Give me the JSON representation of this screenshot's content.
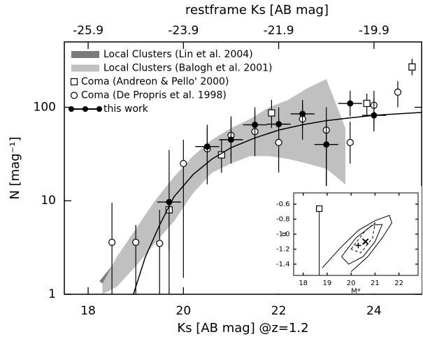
{
  "chart_data": [
    {
      "type": "scatter",
      "xlabel": "Ks [AB mag] @z=1.2",
      "ylabel": "N [mag⁻¹]",
      "x2label": "restframe Ks [AB mag]",
      "xlim": [
        17.5,
        25
      ],
      "xticks": [
        18,
        20,
        22,
        24
      ],
      "x2lim": [
        -26.4,
        -18.9
      ],
      "x2ticks": [
        -25.9,
        -23.9,
        -21.9,
        -19.9
      ],
      "ylim": [
        1,
        500
      ],
      "yticks": [
        1,
        10,
        100
      ],
      "log_y": true,
      "legend": "upper left",
      "series": [
        {
          "name": "Local Clusters (Lin et al. 2004)",
          "style": "band",
          "color": "#7a7a7a",
          "x": [
            18.3,
            18.6,
            19.0,
            19.4,
            19.8,
            20.2,
            20.6,
            21.0,
            21.4,
            21.8,
            22.2,
            22.6,
            23.0
          ],
          "values": [
            1.3,
            2.0,
            3.5,
            6,
            11,
            18,
            28,
            38,
            48,
            55,
            55,
            50,
            42
          ]
        },
        {
          "name": "Local Clusters (Balogh et al. 2001)",
          "style": "area",
          "color": "#c0c0c0",
          "x": [
            18.3,
            18.6,
            19.0,
            19.4,
            19.8,
            20.2,
            20.6,
            21.0,
            21.4,
            21.8,
            22.2,
            22.6,
            23.0,
            23.4
          ],
          "low": [
            1,
            1.2,
            2,
            3.5,
            6,
            12,
            20,
            25,
            30,
            30,
            28,
            25,
            22,
            15
          ],
          "high": [
            1.3,
            2.5,
            5,
            10,
            18,
            30,
            45,
            60,
            75,
            100,
            120,
            160,
            200,
            60
          ]
        },
        {
          "name": "Coma (Andreon & Pello' 2000)",
          "marker": "square",
          "color": "#000000",
          "x": [
            19.7,
            20.8,
            21.85,
            23.85,
            24.8
          ],
          "values": [
            8,
            31,
            87,
            110,
            270
          ],
          "err_low": [
            1,
            20,
            60,
            80,
            220
          ],
          "err_high": [
            10,
            45,
            120,
            140,
            330
          ]
        },
        {
          "name": "Coma (De Propris et al. 1998)",
          "marker": "circle",
          "color": "#000000",
          "x": [
            18.5,
            19.0,
            19.5,
            20.0,
            20.5,
            21.0,
            21.5,
            22.0,
            22.5,
            23.0,
            23.5,
            24.0,
            24.5
          ],
          "values": [
            3.6,
            3.6,
            3.5,
            25,
            36,
            50,
            55,
            42,
            75,
            57,
            42,
            105,
            145
          ],
          "err_low": [
            1,
            1,
            1,
            1.5,
            15,
            25,
            30,
            20,
            45,
            2,
            25,
            60,
            100
          ],
          "err_high": [
            9.5,
            5.5,
            8,
            45,
            60,
            80,
            90,
            75,
            110,
            100,
            70,
            150,
            190
          ]
        },
        {
          "name": "this work",
          "marker": "dot",
          "color": "#000000",
          "x": [
            19.7,
            20.5,
            21.0,
            21.5,
            22.0,
            22.5,
            23.0,
            23.5,
            24.0
          ],
          "values": [
            9.7,
            38,
            45,
            65,
            66,
            85,
            40,
            110,
            82
          ],
          "xerr": [
            0.25,
            0.25,
            0.25,
            0.25,
            0.25,
            0.25,
            0.25,
            0.25,
            0.25
          ],
          "err_low": [
            3,
            22,
            28,
            45,
            45,
            60,
            8,
            80,
            55
          ],
          "err_high": [
            35,
            65,
            75,
            100,
            100,
            120,
            75,
            150,
            125
          ],
          "fit_x": [
            18.95,
            19.2,
            19.5,
            19.8,
            20.2,
            20.6,
            21.0,
            21.5,
            22.0,
            22.5,
            23.0,
            23.5,
            24.0,
            24.5,
            25.0
          ],
          "fit_values": [
            1,
            2.5,
            5.5,
            11,
            19,
            28,
            37,
            47,
            57,
            65,
            72,
            77,
            82,
            85,
            88
          ]
        }
      ]
    },
    {
      "type": "scatter",
      "xlabel": "M*",
      "ylabel": "α",
      "xlim": [
        17.6,
        22.8
      ],
      "xticks": [
        18,
        19,
        20,
        21,
        22
      ],
      "ylim": [
        -1.55,
        -0.45
      ],
      "yticks": [
        -0.6,
        -0.8,
        {
          "value": -1,
          "label": "-1.0"
        },
        -1.2,
        -1.4
      ],
      "contours": [
        {
          "style": "solid",
          "x": [
            18.8,
            19.5,
            20.3,
            21.0,
            21.6,
            21.7,
            21.3,
            20.7,
            20.0
          ],
          "values": [
            -1.45,
            -1.2,
            -0.95,
            -0.82,
            -0.75,
            -0.85,
            -1.05,
            -1.3,
            -1.5
          ]
        },
        {
          "style": "solid",
          "x": [
            19.6,
            20.2,
            20.9,
            21.3,
            21.0,
            20.5,
            19.9,
            19.6
          ],
          "values": [
            -1.3,
            -1.05,
            -0.88,
            -0.87,
            -1.1,
            -1.3,
            -1.4,
            -1.3
          ]
        },
        {
          "style": "dashed",
          "x": [
            20.0,
            20.6,
            21.0,
            20.9,
            20.4,
            20.0
          ],
          "values": [
            -1.2,
            -0.95,
            -0.85,
            -1.05,
            -1.25,
            -1.2
          ]
        }
      ],
      "points": [
        {
          "marker": "square",
          "x": 18.67,
          "value": -0.66,
          "err_low": -1.55
        },
        {
          "marker": "cross",
          "x": 20.6,
          "value": -1.1
        },
        {
          "marker": "plus",
          "x": 20.3,
          "value": -1.15
        }
      ]
    }
  ]
}
